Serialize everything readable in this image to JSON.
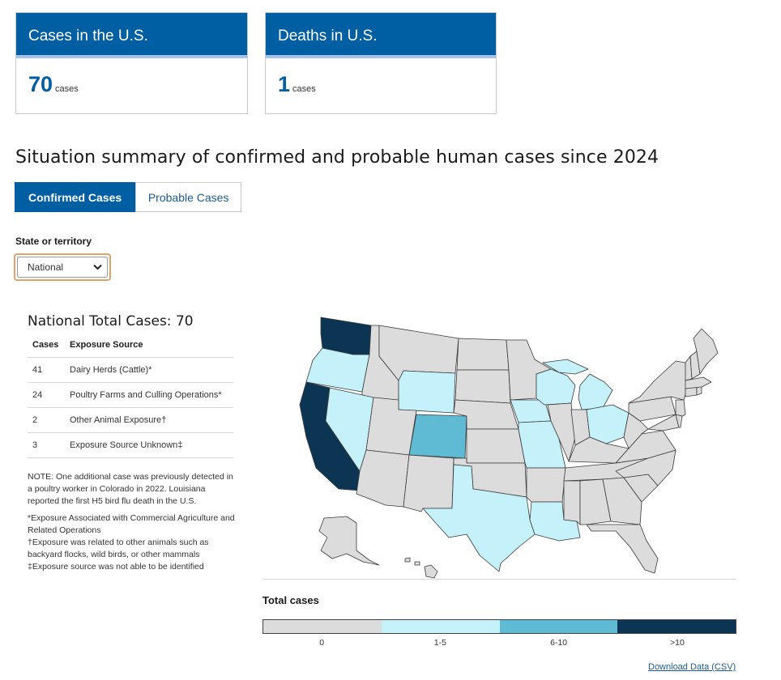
{
  "cards": {
    "cases": {
      "title": "Cases in the U.S.",
      "value": "70",
      "unit": "cases"
    },
    "deaths": {
      "title": "Deaths in U.S.",
      "value": "1",
      "unit": "cases"
    }
  },
  "page_title": "Situation summary of confirmed and probable human cases since 2024",
  "tabs": [
    {
      "label": "Confirmed Cases",
      "active": true
    },
    {
      "label": "Probable Cases",
      "active": false
    }
  ],
  "state_select": {
    "label": "State or territory",
    "value": "National"
  },
  "summary": {
    "heading": "National Total Cases: 70",
    "columns": [
      "Cases",
      "Exposure Source"
    ],
    "rows": [
      {
        "cases": "41",
        "source": "Dairy Herds (Cattle)*"
      },
      {
        "cases": "24",
        "source": "Poultry Farms and Culling Operations*"
      },
      {
        "cases": "2",
        "source": "Other Animal Exposure†"
      },
      {
        "cases": "3",
        "source": "Exposure Source Unknown‡"
      }
    ]
  },
  "notes": {
    "note": "NOTE: One additional case was previously detected in a poultry worker in Colorado in 2022. Louisiana reported the first H5 bird flu death in the U.S.",
    "footnote_1": "*Exposure Associated with Commercial Agriculture and Related Operations",
    "footnote_2": "†Exposure was related to other animals such as backyard flocks, wild birds, or other mammals",
    "footnote_3": "‡Exposure source was not able to be identified"
  },
  "map": {
    "colors": {
      "zero": "#dcdcdc",
      "low": "#c5f1fb",
      "mid": "#5fbad4",
      "high": "#0b3553",
      "border": "#3a3a3a"
    },
    "state_categories": {
      "WA": "high",
      "CA": "high",
      "CO": "mid",
      "OR": "low",
      "NV": "low",
      "WY": "low",
      "TX": "low",
      "LA": "low",
      "IA": "low",
      "MO": "low",
      "WI": "low",
      "MI": "low",
      "OH": "low"
    }
  },
  "legend": {
    "title": "Total cases",
    "bins": [
      {
        "label": "0",
        "color": "#dcdcdc"
      },
      {
        "label": "1-5",
        "color": "#c5f1fb"
      },
      {
        "label": "6-10",
        "color": "#5fbad4"
      },
      {
        "label": ">10",
        "color": "#0b3553"
      }
    ]
  },
  "download_link": "Download Data (CSV)"
}
